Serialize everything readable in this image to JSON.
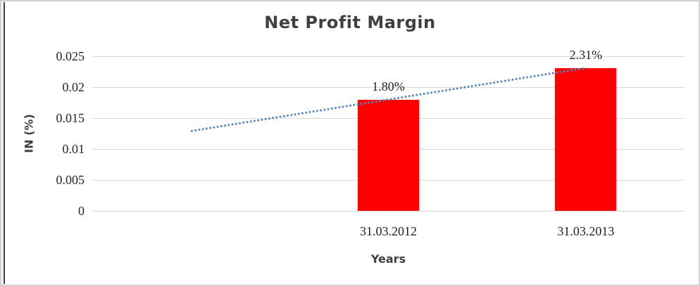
{
  "chart_data": {
    "type": "bar",
    "title": "Net Profit Margin",
    "xlabel": "Years",
    "ylabel": "IN (%)",
    "ylim": [
      0,
      0.025
    ],
    "ytick_labels": [
      "0",
      "0.005",
      "0.01",
      "0.015",
      "0.02",
      "0.025"
    ],
    "categories": [
      "31.03.2012",
      "31.03.2013"
    ],
    "series": [
      {
        "name": "Net Profit Margin",
        "values": [
          0.018,
          0.0231
        ]
      }
    ],
    "data_labels": [
      "1.80%",
      "2.31%"
    ],
    "bar_color": "#FF0000",
    "gridline_color": "#D9D9D9",
    "legend": "none",
    "grid": "on",
    "trendline": {
      "type": "linear",
      "style": "dotted",
      "color": "#4E86C5",
      "slot_values": [
        0.0129,
        0.018,
        0.0231
      ]
    }
  }
}
